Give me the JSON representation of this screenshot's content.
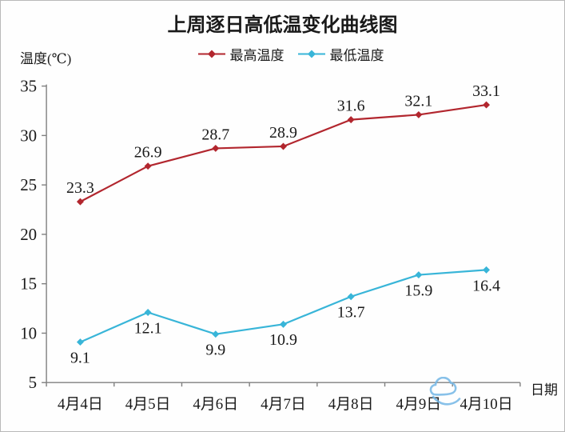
{
  "window": {
    "background": "#fefefe",
    "border_color": "#b9b9b9"
  },
  "chart_data": {
    "type": "line",
    "title": "上周逐日高低温变化曲线图",
    "y_axis_title": "温度(℃)",
    "x_axis_title": "日期",
    "categories": [
      "4月4日",
      "4月5日",
      "4月6日",
      "4月7日",
      "4月8日",
      "4月9日",
      "4月10日"
    ],
    "series": [
      {
        "name": "最高温度",
        "color": "#b2262e",
        "marker": "diamond",
        "label_position": "above",
        "values": [
          23.3,
          26.9,
          28.7,
          28.9,
          31.6,
          32.1,
          33.1
        ]
      },
      {
        "name": "最低温度",
        "color": "#38b5d8",
        "marker": "diamond",
        "label_position": "below",
        "values": [
          9.1,
          12.1,
          9.9,
          10.9,
          13.7,
          15.9,
          16.4
        ]
      }
    ],
    "ylim": [
      5,
      35
    ],
    "ytick_step": 5,
    "grid": false,
    "legend_position": "top",
    "axis_color": "#7f7f7f",
    "text_color": "#1a1a1a"
  },
  "watermark": {
    "icon": "cloud-icon",
    "color": "#74b7e6"
  }
}
